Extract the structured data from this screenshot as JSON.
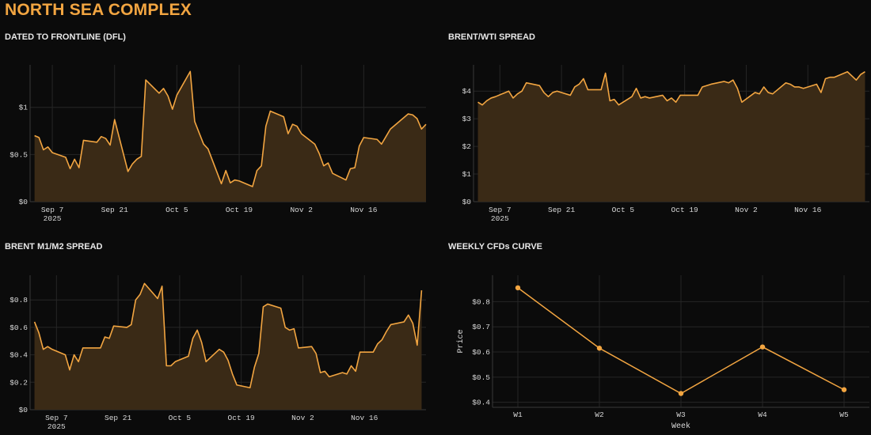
{
  "page": {
    "title": "NORTH SEA COMPLEX"
  },
  "colors": {
    "background": "#0b0b0b",
    "accent": "#f2a541",
    "fill": "#3a2a16",
    "grid": "#262626",
    "title": "#f2a541",
    "panel_title": "#e8e8e8"
  },
  "panels": [
    {
      "title": "DATED TO FRONTLINE (DFL)"
    },
    {
      "title": "BRENT/WTI SPREAD"
    },
    {
      "title": "BRENT M1/M2 SPREAD"
    },
    {
      "title": "WEEKLY CFDs CURVE"
    }
  ],
  "chart_data": [
    {
      "type": "area",
      "title": "DATED TO FRONTLINE (DFL)",
      "xlabel": "",
      "ylabel": "",
      "x_range": [
        "2025-09-02",
        "2025-11-30"
      ],
      "ylim": [
        0,
        1.45
      ],
      "y_ticks": [
        0,
        0.5,
        1
      ],
      "y_tick_labels": [
        "$0",
        "$0.5",
        "$1"
      ],
      "x_tick_dates": [
        "2025-09-07",
        "2025-09-21",
        "2025-10-05",
        "2025-10-19",
        "2025-11-02",
        "2025-11-16"
      ],
      "x_tick_labels": [
        "Sep 7",
        "Sep 21",
        "Oct 5",
        "Oct 19",
        "Nov 2",
        "Nov 16"
      ],
      "x_tick_sublabel": "2025",
      "grid": true,
      "x": [
        "2025-09-03",
        "2025-09-04",
        "2025-09-05",
        "2025-09-06",
        "2025-09-07",
        "2025-09-10",
        "2025-09-11",
        "2025-09-12",
        "2025-09-13",
        "2025-09-14",
        "2025-09-17",
        "2025-09-18",
        "2025-09-19",
        "2025-09-20",
        "2025-09-21",
        "2025-09-24",
        "2025-09-25",
        "2025-09-26",
        "2025-09-27",
        "2025-09-28",
        "2025-10-01",
        "2025-10-02",
        "2025-10-03",
        "2025-10-04",
        "2025-10-05",
        "2025-10-08",
        "2025-10-09",
        "2025-10-10",
        "2025-10-11",
        "2025-10-12",
        "2025-10-15",
        "2025-10-16",
        "2025-10-17",
        "2025-10-18",
        "2025-10-19",
        "2025-10-22",
        "2025-10-23",
        "2025-10-24",
        "2025-10-25",
        "2025-10-26",
        "2025-10-29",
        "2025-10-30",
        "2025-10-31",
        "2025-11-01",
        "2025-11-02",
        "2025-11-05",
        "2025-11-06",
        "2025-11-07",
        "2025-11-08",
        "2025-11-09",
        "2025-11-12",
        "2025-11-13",
        "2025-11-14",
        "2025-11-15",
        "2025-11-16",
        "2025-11-19",
        "2025-11-20",
        "2025-11-21",
        "2025-11-22",
        "2025-11-23",
        "2025-11-26",
        "2025-11-27",
        "2025-11-28",
        "2025-11-29",
        "2025-11-30"
      ],
      "values": [
        0.7,
        0.68,
        0.55,
        0.58,
        0.52,
        0.47,
        0.35,
        0.45,
        0.36,
        0.65,
        0.63,
        0.69,
        0.67,
        0.6,
        0.87,
        0.32,
        0.4,
        0.45,
        0.48,
        1.29,
        1.15,
        1.2,
        1.12,
        0.98,
        1.13,
        1.38,
        0.85,
        0.73,
        0.61,
        0.56,
        0.19,
        0.33,
        0.2,
        0.23,
        0.22,
        0.16,
        0.33,
        0.38,
        0.8,
        0.96,
        0.9,
        0.72,
        0.82,
        0.8,
        0.72,
        0.61,
        0.51,
        0.38,
        0.41,
        0.3,
        0.23,
        0.35,
        0.36,
        0.59,
        0.68,
        0.66,
        0.61,
        0.69,
        0.77,
        0.81,
        0.93,
        0.92,
        0.88,
        0.77,
        0.82
      ]
    },
    {
      "type": "area",
      "title": "BRENT/WTI SPREAD",
      "xlabel": "",
      "ylabel": "",
      "x_range": [
        "2025-09-01",
        "2025-11-30"
      ],
      "ylim": [
        0,
        4.95
      ],
      "y_ticks": [
        0,
        1,
        2,
        3,
        4
      ],
      "y_tick_labels": [
        "$0",
        "$1",
        "$2",
        "$3",
        "$4"
      ],
      "x_tick_dates": [
        "2025-09-07",
        "2025-09-21",
        "2025-10-05",
        "2025-10-19",
        "2025-11-02",
        "2025-11-16"
      ],
      "x_tick_labels": [
        "Sep 7",
        "Sep 21",
        "Oct 5",
        "Oct 19",
        "Nov 2",
        "Nov 16"
      ],
      "x_tick_sublabel": "2025",
      "grid": true,
      "x": [
        "2025-09-02",
        "2025-09-03",
        "2025-09-04",
        "2025-09-05",
        "2025-09-06",
        "2025-09-09",
        "2025-09-10",
        "2025-09-11",
        "2025-09-12",
        "2025-09-13",
        "2025-09-16",
        "2025-09-17",
        "2025-09-18",
        "2025-09-19",
        "2025-09-20",
        "2025-09-23",
        "2025-09-24",
        "2025-09-25",
        "2025-09-26",
        "2025-09-27",
        "2025-09-30",
        "2025-10-01",
        "2025-10-02",
        "2025-10-03",
        "2025-10-04",
        "2025-10-07",
        "2025-10-08",
        "2025-10-09",
        "2025-10-10",
        "2025-10-11",
        "2025-10-14",
        "2025-10-15",
        "2025-10-16",
        "2025-10-17",
        "2025-10-18",
        "2025-10-21",
        "2025-10-22",
        "2025-10-23",
        "2025-10-24",
        "2025-10-25",
        "2025-10-28",
        "2025-10-29",
        "2025-10-30",
        "2025-10-31",
        "2025-11-01",
        "2025-11-04",
        "2025-11-05",
        "2025-11-06",
        "2025-11-07",
        "2025-11-08",
        "2025-11-11",
        "2025-11-12",
        "2025-11-13",
        "2025-11-14",
        "2025-11-15",
        "2025-11-18",
        "2025-11-19",
        "2025-11-20",
        "2025-11-21",
        "2025-11-22",
        "2025-11-25",
        "2025-11-26",
        "2025-11-27",
        "2025-11-28",
        "2025-11-29"
      ],
      "values": [
        3.6,
        3.5,
        3.65,
        3.75,
        3.8,
        4.0,
        3.75,
        3.9,
        4.0,
        4.3,
        4.2,
        3.95,
        3.8,
        3.95,
        4.0,
        3.85,
        4.15,
        4.25,
        4.45,
        4.05,
        4.05,
        4.65,
        3.65,
        3.7,
        3.5,
        3.8,
        4.1,
        3.75,
        3.8,
        3.75,
        3.85,
        3.65,
        3.75,
        3.6,
        3.85,
        3.85,
        3.85,
        4.15,
        4.2,
        4.25,
        4.35,
        4.3,
        4.4,
        4.1,
        3.6,
        3.95,
        3.9,
        4.15,
        3.95,
        3.9,
        4.3,
        4.25,
        4.15,
        4.15,
        4.1,
        4.25,
        3.95,
        4.45,
        4.5,
        4.5,
        4.7,
        4.55,
        4.4,
        4.6,
        4.7
      ]
    },
    {
      "type": "area",
      "title": "BRENT M1/M2 SPREAD",
      "xlabel": "",
      "ylabel": "",
      "x_range": [
        "2025-09-01",
        "2025-11-30"
      ],
      "ylim": [
        0,
        0.98
      ],
      "y_ticks": [
        0,
        0.2,
        0.4,
        0.6,
        0.8
      ],
      "y_tick_labels": [
        "$0",
        "$0.2",
        "$0.4",
        "$0.6",
        "$0.8"
      ],
      "x_tick_dates": [
        "2025-09-07",
        "2025-09-21",
        "2025-10-05",
        "2025-10-19",
        "2025-11-02",
        "2025-11-16"
      ],
      "x_tick_labels": [
        "Sep 7",
        "Sep 21",
        "Oct 5",
        "Oct 19",
        "Nov 2",
        "Nov 16"
      ],
      "x_tick_sublabel": "2025",
      "grid": true,
      "x": [
        "2025-09-02",
        "2025-09-03",
        "2025-09-04",
        "2025-09-05",
        "2025-09-06",
        "2025-09-09",
        "2025-09-10",
        "2025-09-11",
        "2025-09-12",
        "2025-09-13",
        "2025-09-16",
        "2025-09-17",
        "2025-09-18",
        "2025-09-19",
        "2025-09-20",
        "2025-09-23",
        "2025-09-24",
        "2025-09-25",
        "2025-09-26",
        "2025-09-27",
        "2025-09-30",
        "2025-10-01",
        "2025-10-02",
        "2025-10-03",
        "2025-10-04",
        "2025-10-07",
        "2025-10-08",
        "2025-10-09",
        "2025-10-10",
        "2025-10-11",
        "2025-10-14",
        "2025-10-15",
        "2025-10-16",
        "2025-10-17",
        "2025-10-18",
        "2025-10-21",
        "2025-10-22",
        "2025-10-23",
        "2025-10-24",
        "2025-10-25",
        "2025-10-28",
        "2025-10-29",
        "2025-10-30",
        "2025-10-31",
        "2025-11-01",
        "2025-11-04",
        "2025-11-05",
        "2025-11-06",
        "2025-11-07",
        "2025-11-08",
        "2025-11-11",
        "2025-11-12",
        "2025-11-13",
        "2025-11-14",
        "2025-11-15",
        "2025-11-18",
        "2025-11-19",
        "2025-11-20",
        "2025-11-21",
        "2025-11-22",
        "2025-11-25",
        "2025-11-26",
        "2025-11-27",
        "2025-11-28",
        "2025-11-29"
      ],
      "values": [
        0.64,
        0.56,
        0.44,
        0.46,
        0.44,
        0.4,
        0.29,
        0.4,
        0.35,
        0.45,
        0.45,
        0.45,
        0.53,
        0.52,
        0.61,
        0.6,
        0.62,
        0.8,
        0.84,
        0.92,
        0.81,
        0.9,
        0.32,
        0.32,
        0.35,
        0.39,
        0.52,
        0.58,
        0.49,
        0.35,
        0.44,
        0.42,
        0.36,
        0.26,
        0.18,
        0.16,
        0.31,
        0.41,
        0.75,
        0.77,
        0.74,
        0.6,
        0.58,
        0.59,
        0.45,
        0.46,
        0.41,
        0.27,
        0.28,
        0.24,
        0.27,
        0.26,
        0.32,
        0.28,
        0.42,
        0.42,
        0.48,
        0.51,
        0.57,
        0.62,
        0.64,
        0.69,
        0.63,
        0.47,
        0.87
      ]
    },
    {
      "type": "line",
      "title": "WEEKLY CFDs CURVE",
      "xlabel": "Week",
      "ylabel": "Price",
      "categories": [
        "W1",
        "W2",
        "W3",
        "W4",
        "W5"
      ],
      "values": [
        0.855,
        0.615,
        0.435,
        0.62,
        0.45
      ],
      "ylim": [
        0.38,
        0.905
      ],
      "y_ticks": [
        0.4,
        0.5,
        0.6,
        0.7,
        0.8
      ],
      "y_tick_labels": [
        "$0.4",
        "$0.5",
        "$0.6",
        "$0.7",
        "$0.8"
      ],
      "grid": true,
      "markers": true
    }
  ]
}
